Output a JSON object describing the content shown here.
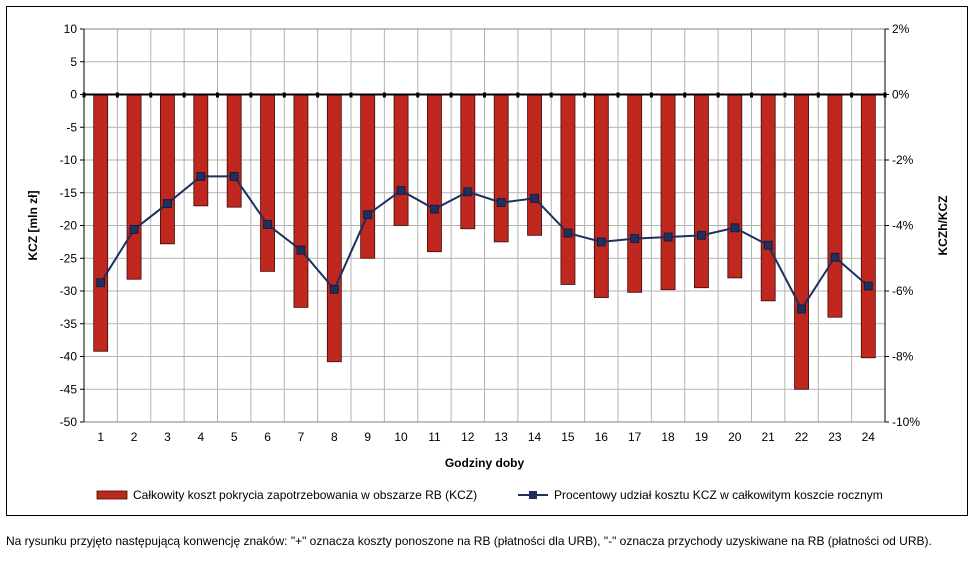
{
  "chart_data": {
    "type": "bar",
    "xlabel": "Godziny doby",
    "ylabel": "KCZ [mln zł]",
    "y2label": "KCZh/KCZ",
    "ylim": [
      -50,
      10
    ],
    "y2lim": [
      -10,
      2
    ],
    "yticks": [
      "10",
      "5",
      "0",
      "-5",
      "-10",
      "-15",
      "-20",
      "-25",
      "-30",
      "-35",
      "-40",
      "-45",
      "-50"
    ],
    "y2ticks": [
      "2%",
      "0%",
      "-2%",
      "-4%",
      "-6%",
      "-8%",
      "-10%"
    ],
    "categories": [
      "1",
      "2",
      "3",
      "4",
      "5",
      "6",
      "7",
      "8",
      "9",
      "10",
      "11",
      "12",
      "13",
      "14",
      "15",
      "16",
      "17",
      "18",
      "19",
      "20",
      "21",
      "22",
      "23",
      "24"
    ],
    "grid": true,
    "legend_position": "bottom",
    "series": [
      {
        "name": "Całkowity koszt pokrycia zapotrzebowania w obszarze RB (KCZ)",
        "kind": "bar",
        "axis": "left",
        "color": "#C0271E",
        "values": [
          -39.2,
          -28.2,
          -22.8,
          -17.0,
          -17.2,
          -27.0,
          -32.5,
          -40.8,
          -25.0,
          -20.0,
          -24.0,
          -20.5,
          -22.5,
          -21.5,
          -29.0,
          -31.0,
          -30.2,
          -29.8,
          -29.5,
          -28.0,
          -31.5,
          -45.0,
          -34.0,
          -40.2
        ]
      },
      {
        "name": "Procentowy udział kosztu KCZ w całkowitym koszcie rocznym",
        "kind": "line",
        "axis": "right",
        "color": "#1F2F5E",
        "values": [
          -5.75,
          -4.12,
          -3.33,
          -2.5,
          -2.5,
          -3.97,
          -4.75,
          -5.95,
          -3.67,
          -2.93,
          -3.5,
          -2.97,
          -3.3,
          -3.17,
          -4.23,
          -4.5,
          -4.4,
          -4.35,
          -4.3,
          -4.07,
          -4.6,
          -6.55,
          -4.97,
          -5.85
        ]
      }
    ]
  },
  "footnote": "Na rysunku przyjęto następującą konwencję znaków: \"+\" oznacza koszty ponoszone na RB (płatności dla URB), \"-\" oznacza przychody uzyskiwane na RB (płatności od URB)."
}
